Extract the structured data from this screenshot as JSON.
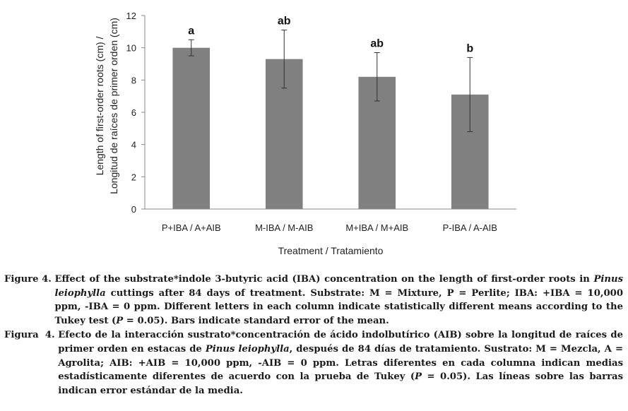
{
  "chart_data": {
    "type": "bar",
    "categories": [
      "P+IBA / A+AIB",
      "M-IBA / M-AIB",
      "M+IBA / M+AIB",
      "P-IBA / A-AIB"
    ],
    "values": [
      10.0,
      9.3,
      8.2,
      7.1
    ],
    "errors": [
      0.5,
      1.8,
      1.5,
      2.3
    ],
    "significance_letters": [
      "a",
      "ab",
      "ab",
      "b"
    ],
    "title": "",
    "xlabel": "Treatment / Tratamiento",
    "ylabel_lines": [
      "Length of first-order roots (cm) /",
      "Longitud de raíces de primer orden (cm)"
    ],
    "ylim": [
      0,
      12
    ],
    "yticks": [
      0,
      2,
      4,
      6,
      8,
      10,
      12
    ],
    "grid": false,
    "bar_color": "#808080"
  },
  "caption": {
    "en": {
      "label": "Figure 4. ",
      "parts": [
        "Effect of the substrate*indole 3-butyric acid (IBA) concentration on the length of first-order roots in ",
        "Pinus leiophylla",
        " cuttings after 84 days of treatment. Substrate: M = Mixture, P = Perlite; IBA: +IBA = 10,000 ppm, -IBA = 0 ppm. Different letters in each column indicate statistically different means according to the Tukey test (",
        "P",
        " = 0.05). Bars indicate standard error of the mean."
      ]
    },
    "es": {
      "label": "Figura  4. ",
      "parts": [
        "Efecto de la interacción sustrato*concentración de ácido indolbutírico (AIB) sobre la longitud de raíces de primer orden en estacas de ",
        "Pinus leiophylla",
        ", después de 84 días de tratamiento. Sustrato: M = Mezcla, A = Agrolita; AIB: +AIB = 10,000 ppm, -AIB = 0 ppm. Letras diferentes en cada columna indican medias estadísticamente diferentes de acuerdo con la prueba de Tukey (",
        "P",
        " = 0.05). Las líneas sobre las barras indican error estándar de la media."
      ]
    }
  }
}
